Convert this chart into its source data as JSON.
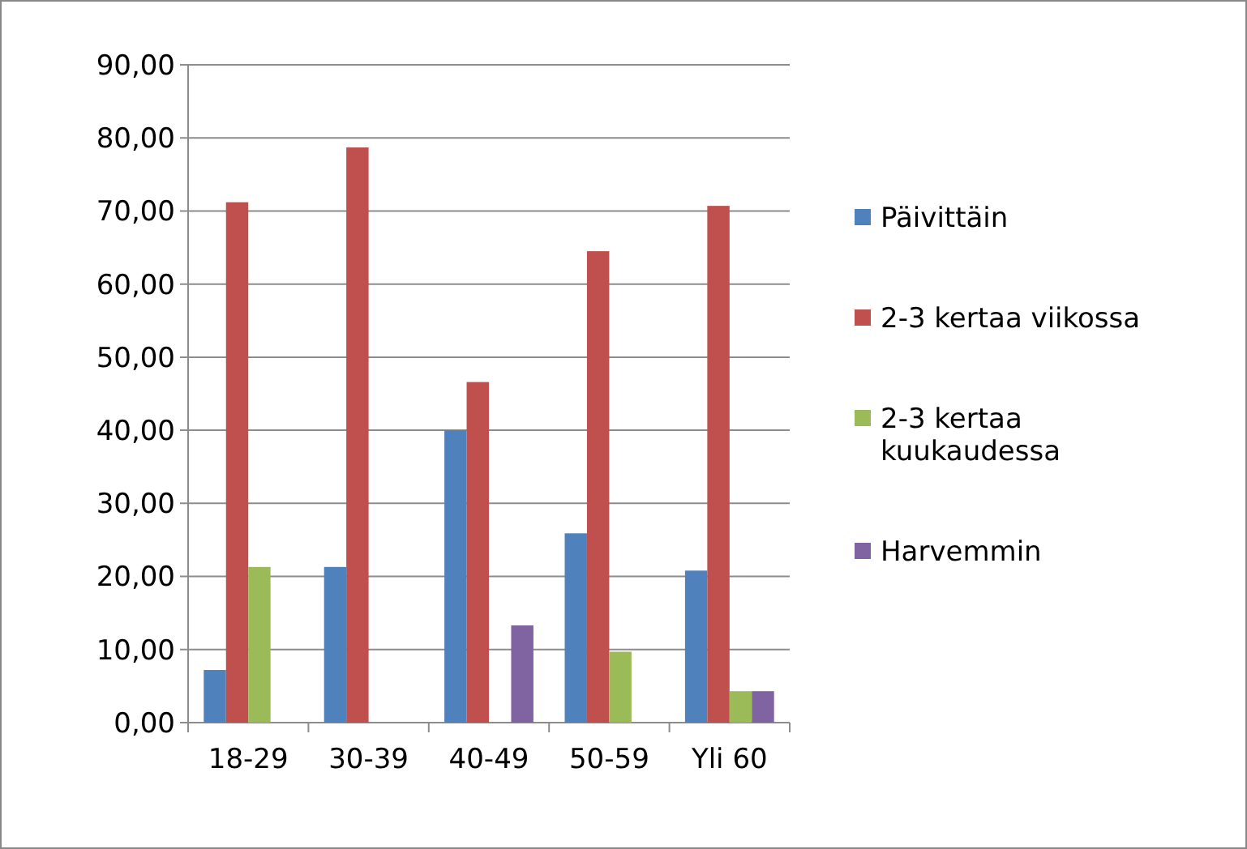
{
  "chart_data": {
    "type": "bar",
    "categories": [
      "18-29",
      "30-39",
      "40-49",
      "50-59",
      "Yli 60"
    ],
    "series": [
      {
        "name": "Päivittäin",
        "color": "#4f81bd",
        "values": [
          7.2,
          21.3,
          40.0,
          25.9,
          20.8
        ]
      },
      {
        "name": "2-3 kertaa viikossa",
        "color": "#c0504d",
        "values": [
          71.2,
          78.7,
          46.6,
          64.5,
          70.7
        ]
      },
      {
        "name": "2-3 kertaa kuukaudessa",
        "color": "#9bbb59",
        "values": [
          21.3,
          0,
          0,
          9.7,
          4.3
        ]
      },
      {
        "name": "Harvemmin",
        "color": "#8064a2",
        "values": [
          0,
          0,
          13.3,
          0,
          4.3
        ]
      }
    ],
    "ylim": [
      0,
      90
    ],
    "yticks": [
      {
        "value": 0,
        "label": "0,00"
      },
      {
        "value": 10,
        "label": "10,00"
      },
      {
        "value": 20,
        "label": "20,00"
      },
      {
        "value": 30,
        "label": "30,00"
      },
      {
        "value": 40,
        "label": "40,00"
      },
      {
        "value": 50,
        "label": "50,00"
      },
      {
        "value": 60,
        "label": "60,00"
      },
      {
        "value": 70,
        "label": "70,00"
      },
      {
        "value": 80,
        "label": "80,00"
      },
      {
        "value": 90,
        "label": "90,00"
      }
    ],
    "grid": "y",
    "legend": "right"
  }
}
